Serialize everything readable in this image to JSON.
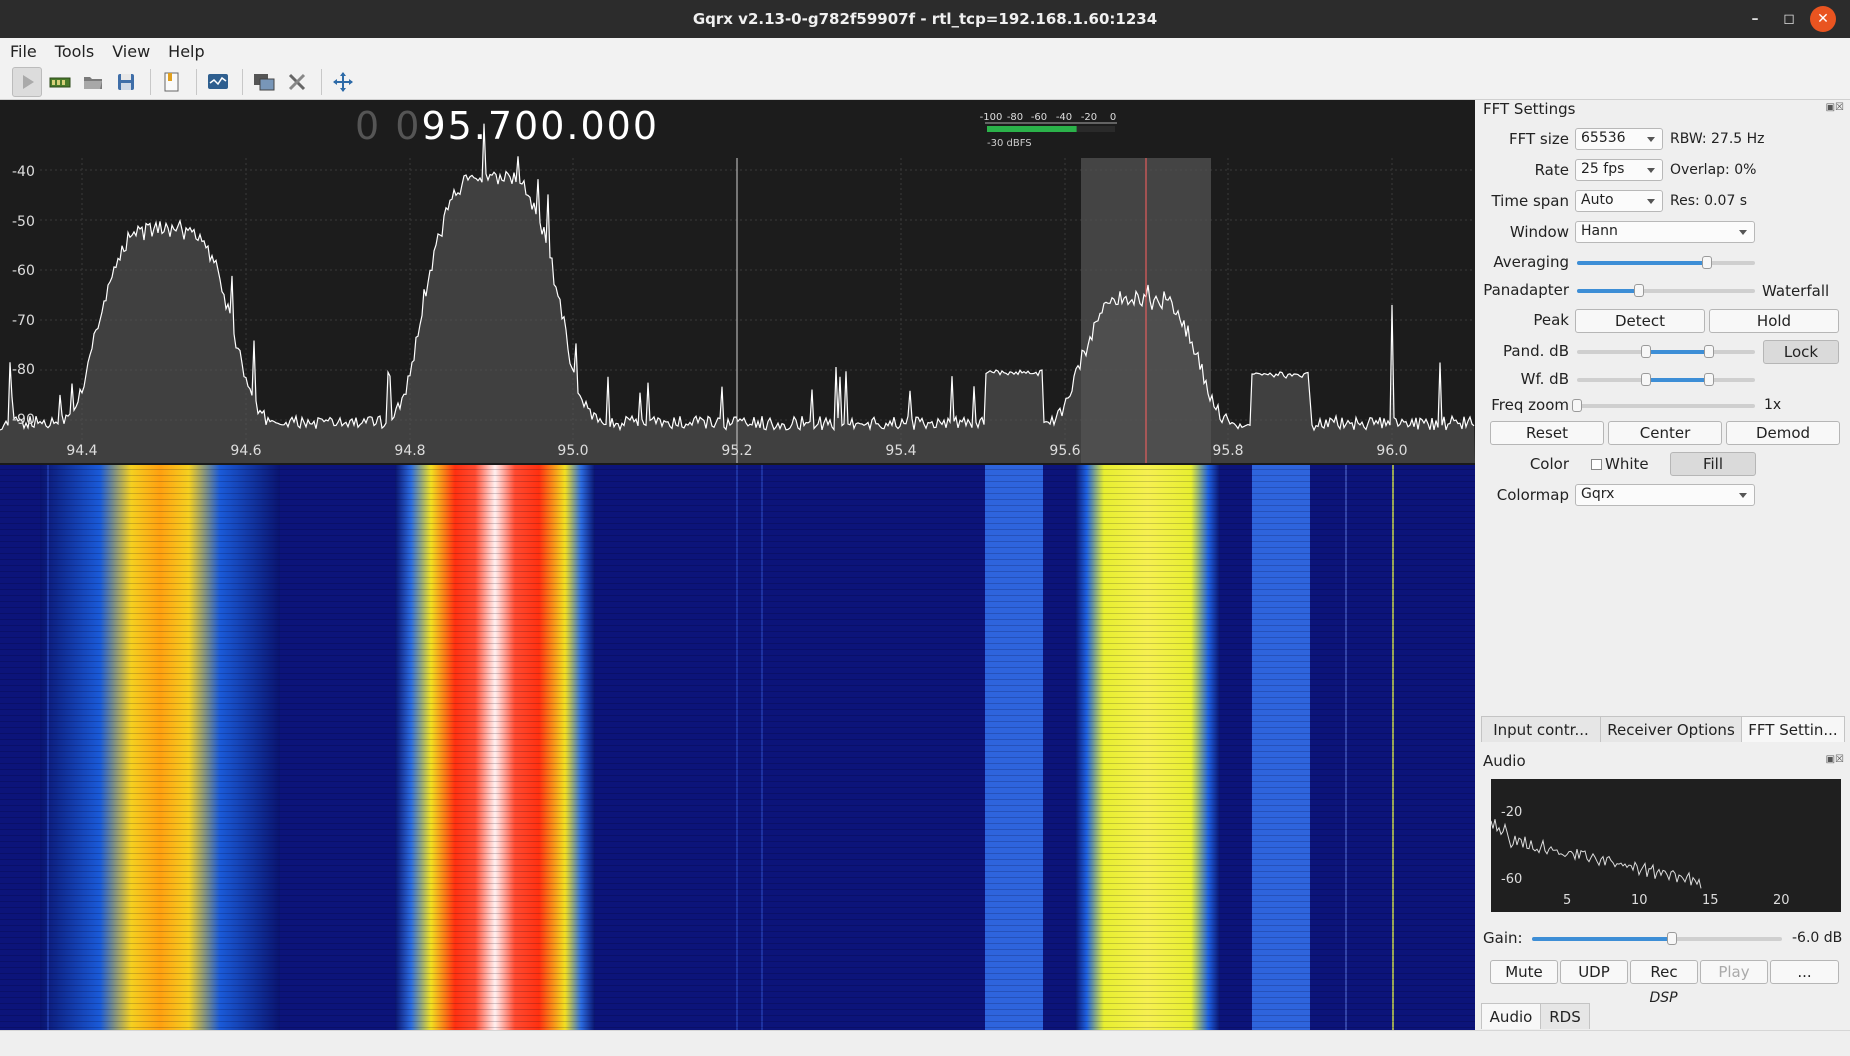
{
  "window": {
    "title": "Gqrx v2.13-0-g782f59907f - rtl_tcp=192.168.1.60:1234"
  },
  "menu": [
    "File",
    "Tools",
    "View",
    "Help"
  ],
  "toolbar": {
    "icons": [
      "play-icon",
      "hardware-icon",
      "open-icon",
      "save-icon",
      "bookmark-icon",
      "network-icon",
      "remote-icon",
      "tools-icon",
      "fullscreen-icon"
    ]
  },
  "frequency": {
    "dim_digits": "0 0",
    "value": "95.700.000"
  },
  "signal_meter": {
    "ticks": [
      "-100",
      "-80",
      "-60",
      "-40",
      "-20",
      "0"
    ],
    "readout": "-30 dBFS",
    "level": 0.7
  },
  "spectrum": {
    "db_labels": [
      "-40",
      "-50",
      "-60",
      "-70",
      "-80",
      "-90"
    ],
    "freq_labels": [
      "94.4",
      "94.6",
      "94.8",
      "95.0",
      "95.2",
      "95.4",
      "95.6",
      "95.8",
      "96.0"
    ]
  },
  "fft_settings": {
    "title": "FFT Settings",
    "fft_size_label": "FFT size",
    "fft_size": "65536",
    "rbw": "RBW: 27.5 Hz",
    "rate_label": "Rate",
    "rate": "25 fps",
    "overlap": "Overlap: 0%",
    "timespan_label": "Time span",
    "timespan": "Auto",
    "res": "Res: 0.07 s",
    "window_label": "Window",
    "window": "Hann",
    "averaging_label": "Averaging",
    "averaging": 0.73,
    "panadapter_label": "Panadapter",
    "waterfall_label": "Waterfall",
    "pan_wf_split": 0.35,
    "peak_label": "Peak",
    "detect": "Detect",
    "hold": "Hold",
    "pand_db_label": "Pand. dB",
    "lock": "Lock",
    "pand_db_range": [
      0.39,
      0.74
    ],
    "wf_db_label": "Wf. dB",
    "wf_db_range": [
      0.39,
      0.74
    ],
    "freq_zoom_label": "Freq zoom",
    "freq_zoom": "1x",
    "freq_zoom_level": 0.0,
    "reset": "Reset",
    "center": "Center",
    "demod": "Demod",
    "color_label": "Color",
    "white": "White",
    "fill": "Fill",
    "colormap_label": "Colormap",
    "colormap": "Gqrx"
  },
  "dock_tabs": [
    "Input contr...",
    "Receiver Options",
    "FFT Settin..."
  ],
  "audio": {
    "title": "Audio",
    "fft_db_labels": [
      "-20",
      "-60"
    ],
    "fft_freq_labels": [
      "5",
      "10",
      "15",
      "20"
    ],
    "gain_label": "Gain:",
    "gain_value": "-6.0 dB",
    "gain_level": 0.56,
    "mute": "Mute",
    "udp": "UDP",
    "rec": "Rec",
    "play": "Play",
    "more": "...",
    "dsp": "DSP"
  },
  "bottom_tabs": [
    "Audio",
    "RDS"
  ]
}
